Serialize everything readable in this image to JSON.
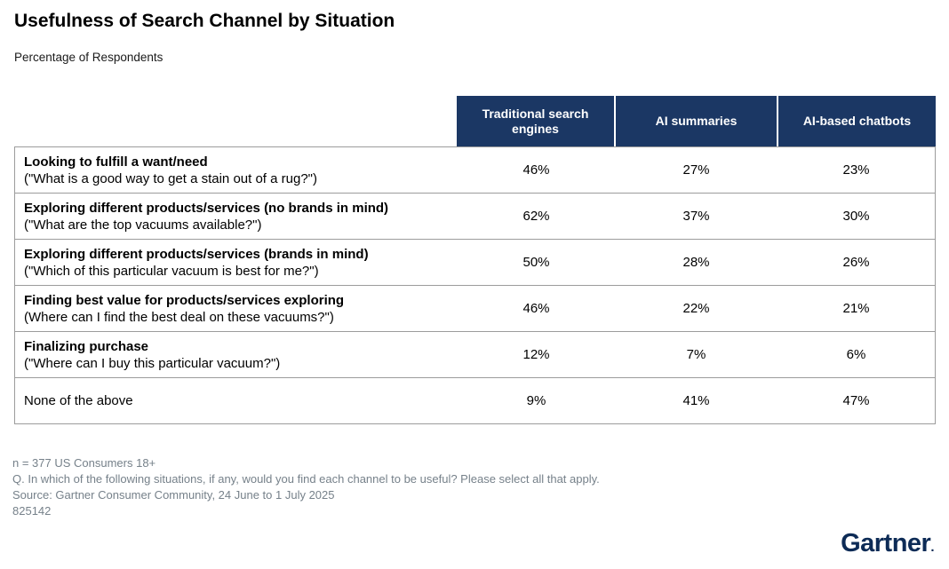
{
  "title": "Usefulness of Search Channel by Situation",
  "subtitle": "Percentage of Respondents",
  "table": {
    "columns": [
      "Traditional search engines",
      "AI summaries",
      "AI-based chatbots"
    ],
    "rows": [
      {
        "label": "Looking to fulfill a want/need",
        "sublabel": "(\"What is a good way to get a stain out of a rug?\")",
        "values": [
          "46%",
          "27%",
          "23%"
        ]
      },
      {
        "label": "Exploring different products/services (no brands in mind)",
        "sublabel": "(\"What are the top vacuums available?\")",
        "values": [
          "62%",
          "37%",
          "30%"
        ]
      },
      {
        "label": "Exploring different products/services (brands in mind)",
        "sublabel": "(\"Which of this particular vacuum is best for me?\")",
        "values": [
          "50%",
          "28%",
          "26%"
        ]
      },
      {
        "label": "Finding best value for products/services exploring",
        "sublabel": "(Where can I find the best deal on these vacuums?\")",
        "values": [
          "46%",
          "22%",
          "21%"
        ]
      },
      {
        "label": "Finalizing purchase",
        "sublabel": "(\"Where can I buy this particular vacuum?\")",
        "values": [
          "12%",
          "7%",
          "6%"
        ]
      },
      {
        "label": "None of the above",
        "sublabel": "",
        "values": [
          "9%",
          "41%",
          "47%"
        ]
      }
    ]
  },
  "footnotes": [
    "n = 377 US Consumers 18+",
    "Q. In which of the following situations, if any, would you find each channel to be useful? Please select all that apply.",
    "Source: Gartner Consumer Community, 24 June to 1 July 2025",
    "825142"
  ],
  "logo": {
    "text": "Gartner",
    "mark": "."
  },
  "colors": {
    "header_bg": "#1B3764",
    "logo_navy": "#0D2B56",
    "border_gray": "#9C9C9C",
    "footnote_gray": "#76818A"
  },
  "chart_data": {
    "type": "table",
    "title": "Usefulness of Search Channel by Situation",
    "subtitle": "Percentage of Respondents",
    "unit": "percent of respondents",
    "sample": "n = 377 US Consumers 18+",
    "columns": [
      "Traditional search engines",
      "AI summaries",
      "AI-based chatbots"
    ],
    "rows": [
      {
        "situation": "Looking to fulfill a want/need",
        "values": [
          46,
          27,
          23
        ]
      },
      {
        "situation": "Exploring different products/services (no brands in mind)",
        "values": [
          62,
          37,
          30
        ]
      },
      {
        "situation": "Exploring different products/services (brands in mind)",
        "values": [
          50,
          28,
          26
        ]
      },
      {
        "situation": "Finding best value for products/services exploring",
        "values": [
          46,
          22,
          21
        ]
      },
      {
        "situation": "Finalizing purchase",
        "values": [
          12,
          7,
          6
        ]
      },
      {
        "situation": "None of the above",
        "values": [
          9,
          41,
          47
        ]
      }
    ]
  }
}
